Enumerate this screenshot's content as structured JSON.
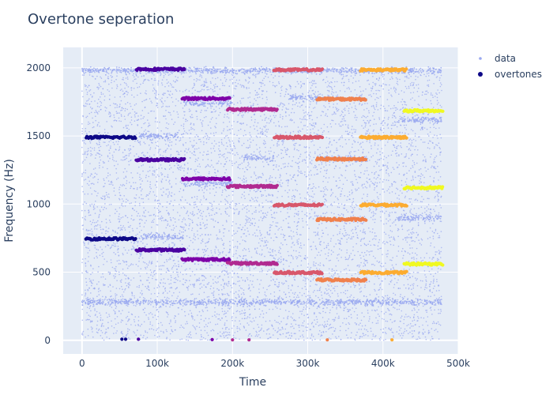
{
  "chart_data": {
    "type": "scatter",
    "title": "Overtone seperation",
    "xlabel": "Time",
    "ylabel": "Frequency (Hz)",
    "xlim": [
      -25000,
      500000
    ],
    "ylim": [
      -100,
      2150
    ],
    "x_ticks": [
      0,
      100000,
      200000,
      300000,
      400000,
      500000
    ],
    "x_tick_labels": [
      "0",
      "100k",
      "200k",
      "300k",
      "400k",
      "500k"
    ],
    "y_ticks": [
      0,
      500,
      1000,
      1500,
      2000
    ],
    "y_tick_labels": [
      "0",
      "500",
      "1000",
      "1500",
      "2000"
    ],
    "grid": true,
    "legend_position": "top-right",
    "plot_bgcolor": "#e5ecf6",
    "series": [
      {
        "name": "data",
        "color": "#99a8f0",
        "mode": "markers",
        "noise": {
          "x_range": [
            0,
            478000
          ],
          "y_range": [
            0,
            2000
          ],
          "count": 7000
        },
        "bands": [
          {
            "y": 280,
            "x_range": [
              0,
              478000
            ]
          },
          {
            "y": 1500,
            "x_range": [
              75000,
              135000
            ]
          },
          {
            "y": 760,
            "x_range": [
              75000,
              135000
            ]
          },
          {
            "y": 1740,
            "x_range": [
              135000,
              200000
            ]
          },
          {
            "y": 1150,
            "x_range": [
              135000,
              200000
            ]
          },
          {
            "y": 1340,
            "x_range": [
              215000,
              255000
            ]
          },
          {
            "y": 1780,
            "x_range": [
              275000,
              330000
            ]
          },
          {
            "y": 1330,
            "x_range": [
              315000,
              380000
            ]
          },
          {
            "y": 900,
            "x_range": [
              420000,
              478000
            ]
          },
          {
            "y": 1620,
            "x_range": [
              420000,
              478000
            ]
          },
          {
            "y": 1980,
            "x_range": [
              0,
              478000
            ]
          }
        ]
      },
      {
        "name": "overtones",
        "mode": "markers",
        "segments": [
          {
            "x_start": 5000,
            "x_end": 72000,
            "y": 745,
            "color": "#0d0887"
          },
          {
            "x_start": 5000,
            "x_end": 72000,
            "y": 1490,
            "color": "#0d0887"
          },
          {
            "x_start": 72000,
            "x_end": 137000,
            "y": 1990,
            "color": "#4a02a0"
          },
          {
            "x_start": 72000,
            "x_end": 137000,
            "y": 1325,
            "color": "#4a02a0"
          },
          {
            "x_start": 72000,
            "x_end": 137000,
            "y": 663,
            "color": "#4a02a0"
          },
          {
            "x_start": 133000,
            "x_end": 197000,
            "y": 1775,
            "color": "#7e03a8"
          },
          {
            "x_start": 133000,
            "x_end": 197000,
            "y": 1185,
            "color": "#7e03a8"
          },
          {
            "x_start": 133000,
            "x_end": 197000,
            "y": 593,
            "color": "#7e03a8"
          },
          {
            "x_start": 193000,
            "x_end": 260000,
            "y": 1695,
            "color": "#b12a90"
          },
          {
            "x_start": 193000,
            "x_end": 260000,
            "y": 1130,
            "color": "#b12a90"
          },
          {
            "x_start": 193000,
            "x_end": 260000,
            "y": 565,
            "color": "#b12a90"
          },
          {
            "x_start": 255000,
            "x_end": 320000,
            "y": 1985,
            "color": "#d8576b"
          },
          {
            "x_start": 255000,
            "x_end": 320000,
            "y": 1490,
            "color": "#d8576b"
          },
          {
            "x_start": 255000,
            "x_end": 320000,
            "y": 993,
            "color": "#d8576b"
          },
          {
            "x_start": 255000,
            "x_end": 320000,
            "y": 497,
            "color": "#d8576b"
          },
          {
            "x_start": 312000,
            "x_end": 378000,
            "y": 1770,
            "color": "#f0804d"
          },
          {
            "x_start": 312000,
            "x_end": 378000,
            "y": 1330,
            "color": "#f0804d"
          },
          {
            "x_start": 312000,
            "x_end": 378000,
            "y": 887,
            "color": "#f0804d"
          },
          {
            "x_start": 312000,
            "x_end": 378000,
            "y": 443,
            "color": "#f0804d"
          },
          {
            "x_start": 370000,
            "x_end": 432000,
            "y": 1985,
            "color": "#fcac31"
          },
          {
            "x_start": 370000,
            "x_end": 432000,
            "y": 1490,
            "color": "#fcac31"
          },
          {
            "x_start": 370000,
            "x_end": 432000,
            "y": 993,
            "color": "#fcac31"
          },
          {
            "x_start": 370000,
            "x_end": 432000,
            "y": 497,
            "color": "#fcac31"
          },
          {
            "x_start": 428000,
            "x_end": 480000,
            "y": 1685,
            "color": "#f0f921"
          },
          {
            "x_start": 428000,
            "x_end": 480000,
            "y": 1120,
            "color": "#f0f921"
          },
          {
            "x_start": 428000,
            "x_end": 480000,
            "y": 560,
            "color": "#f0f921"
          }
        ],
        "zero_points": [
          {
            "x": 53000,
            "y": 8,
            "color": "#0d0887"
          },
          {
            "x": 58000,
            "y": 8,
            "color": "#0d0887"
          },
          {
            "x": 75000,
            "y": 8,
            "color": "#4a02a0"
          },
          {
            "x": 173000,
            "y": 5,
            "color": "#7e03a8"
          },
          {
            "x": 200000,
            "y": 3,
            "color": "#b12a90"
          },
          {
            "x": 222000,
            "y": 3,
            "color": "#b12a90"
          },
          {
            "x": 326000,
            "y": 3,
            "color": "#f0804d"
          },
          {
            "x": 412000,
            "y": 3,
            "color": "#fcac31"
          }
        ]
      }
    ]
  }
}
